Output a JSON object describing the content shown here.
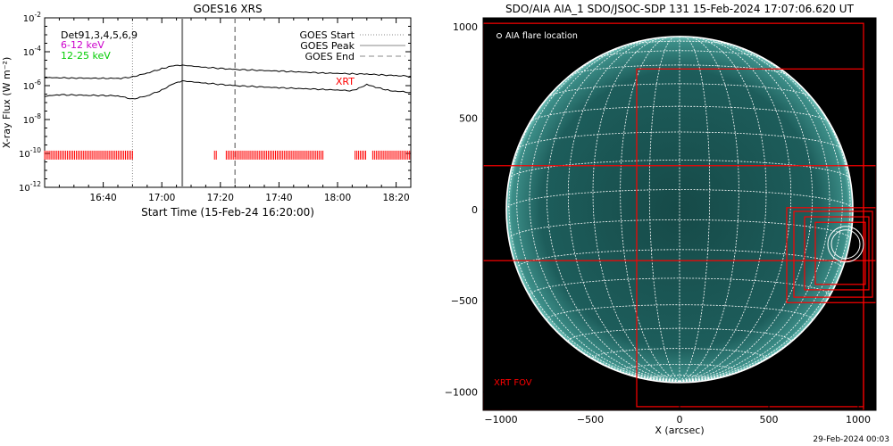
{
  "chart_data": [
    {
      "type": "line",
      "title": "GOES16 XRS",
      "xlabel": "Start Time (15-Feb-24 16:20:00)",
      "ylabel": "X-ray Flux (W m⁻²)",
      "xlim": [
        "16:20",
        "18:25"
      ],
      "ylim_log10": [
        -12,
        -2
      ],
      "yscale": "log",
      "x_ticks": [
        "16:40",
        "17:00",
        "17:20",
        "17:40",
        "18:00",
        "18:20"
      ],
      "y_ticks": [
        {
          "exp": -2,
          "label": "10-2"
        },
        {
          "exp": -4,
          "label": "10-4"
        },
        {
          "exp": -6,
          "label": "10-6"
        },
        {
          "exp": -8,
          "label": "10-8"
        },
        {
          "exp": -10,
          "label": "10-10"
        },
        {
          "exp": -12,
          "label": "10-12"
        }
      ],
      "channel_labels": [
        {
          "text": "Det91,3,4,5,6,9",
          "color": "#000000"
        },
        {
          "text": "6-12 keV",
          "color": "#cc00cc"
        },
        {
          "text": "12-25 keV",
          "color": "#00cc00"
        }
      ],
      "legend": {
        "placement": "top-right",
        "items": [
          {
            "name": "GOES Start",
            "style": "dotted"
          },
          {
            "name": "GOES Peak",
            "style": "solid"
          },
          {
            "name": "GOES End",
            "style": "dashed"
          }
        ]
      },
      "event_lines": [
        {
          "time": "16:50",
          "style": "dotted"
        },
        {
          "time": "17:07",
          "style": "solid"
        },
        {
          "time": "17:25",
          "style": "dashed"
        }
      ],
      "series": [
        {
          "color": "#000000",
          "x": [
            "16:20",
            "16:30",
            "16:40",
            "16:46",
            "16:50",
            "16:55",
            "17:00",
            "17:04",
            "17:07",
            "17:15",
            "17:25",
            "17:40",
            "17:55",
            "18:05",
            "18:10",
            "18:15",
            "18:20",
            "18:25"
          ],
          "y": [
            3e-06,
            2.8e-06,
            2.7e-06,
            2.7e-06,
            3.3e-06,
            5.5e-06,
            1e-05,
            1.5e-05,
            1.6e-05,
            1.2e-05,
            9e-06,
            7.2e-06,
            5.6e-06,
            5e-06,
            4.8e-06,
            4.3e-06,
            3.9e-06,
            3.6e-06
          ]
        },
        {
          "color": "#000000",
          "x": [
            "16:20",
            "16:25",
            "16:35",
            "16:45",
            "16:50",
            "16:55",
            "17:00",
            "17:04",
            "17:07",
            "17:15",
            "17:25",
            "17:40",
            "17:55",
            "18:05",
            "18:08",
            "18:10",
            "18:13",
            "18:18",
            "18:25"
          ],
          "y": [
            2.4e-07,
            2.9e-07,
            2.7e-07,
            2.5e-07,
            1.6e-07,
            2.5e-07,
            5.5e-07,
            1.3e-06,
            1.9e-06,
            1.4e-06,
            1e-06,
            7.5e-07,
            6e-07,
            5e-07,
            8e-07,
            1.2e-06,
            8e-07,
            5e-07,
            4e-07
          ]
        }
      ],
      "annotation": {
        "text": "XRT",
        "time": "18:03",
        "color": "#ff0000"
      },
      "xrt_coverage": {
        "color": "#ff0000",
        "log10_flux": -10.1,
        "intervals": [
          [
            "16:20",
            "16:50"
          ],
          [
            "17:18",
            "17:19"
          ],
          [
            "17:22",
            "17:55"
          ],
          [
            "18:06",
            "18:10"
          ],
          [
            "18:12",
            "18:25"
          ]
        ]
      }
    },
    {
      "type": "map",
      "title": "SDO/AIA AIA_1 SDO/JSOC-SDP 131 15-Feb-2024 17:07:06.620 UT",
      "xlabel": "X (arcsec)",
      "ylabel": "",
      "xlim": [
        -1100,
        1100
      ],
      "ylim": [
        -1100,
        1050
      ],
      "x_ticks": [
        -1000,
        -500,
        0,
        500,
        1000
      ],
      "y_ticks": [
        -1000,
        -500,
        0,
        500,
        1000
      ],
      "solar_radius_arcsec": 970,
      "grid_step_deg": 10,
      "colors": {
        "disk": "#1d5d5b",
        "grid": "#ffffff",
        "fov": "#ff0000",
        "background": "#000000"
      },
      "legend_label": "AIA flare location",
      "fov_label": "XRT FOV",
      "flare_location": [
        930,
        -190
      ],
      "fov_boxes": [
        [
          -1100,
          -1100,
          1030,
          1020
        ],
        [
          -240,
          -1080,
          1030,
          770
        ],
        [
          600,
          -510,
          1100,
          10
        ],
        [
          640,
          -480,
          1080,
          -10
        ],
        [
          700,
          -440,
          1060,
          -40
        ],
        [
          760,
          -410,
          1040,
          -70
        ],
        [
          -1100,
          -280,
          1100,
          240
        ]
      ],
      "flare_circles": [
        [
          930,
          -190,
          100
        ],
        [
          930,
          -190,
          80
        ]
      ]
    }
  ],
  "footer": {
    "timestamp": "29-Feb-2024 00:03"
  }
}
